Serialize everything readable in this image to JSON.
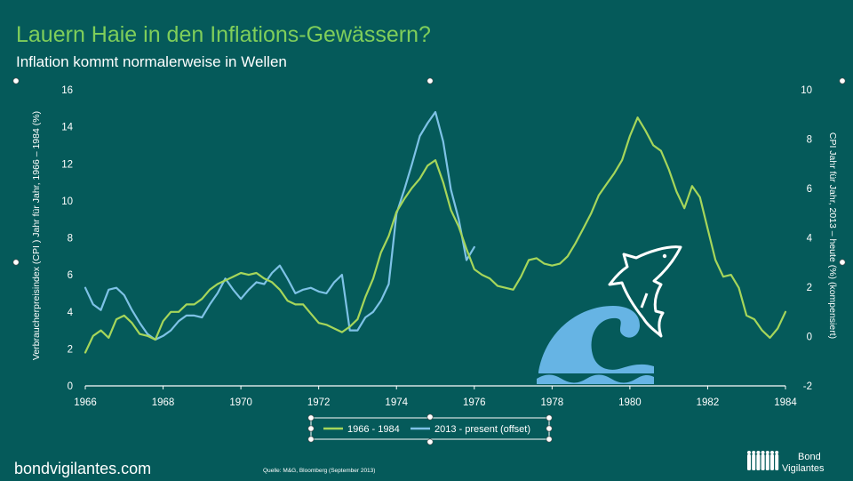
{
  "page": {
    "title": "Lauern Haie in den Inflations-Gewässern?",
    "subtitle": "Inflation kommt normalerweise in Wellen",
    "footer_site": "bondvigilantes.com",
    "source_note": "Quelle: M&G, Bloomberg (September 2013)",
    "brand_line1": "Bond",
    "brand_line2": "Vigilantes"
  },
  "colors": {
    "background": "#055a5a",
    "title": "#7fce5a",
    "series1": "#a6d65a",
    "series2": "#7ec2e6",
    "wave": "#66b4e4",
    "axis": "#ffffff"
  },
  "chart_data": {
    "type": "line",
    "ylabel_left": "Verbraucherpreisindex (CPI ) Jahr für Jahr, 1966 – 1984 (%)",
    "ylabel_right": "CPI Jahr für Jahr, 2013 – heute (%) (kompensiert)",
    "xlim": [
      1966,
      1984
    ],
    "ylim_left": [
      0,
      16
    ],
    "ylim_right": [
      -2,
      10
    ],
    "x_ticks": [
      "1966",
      "1968",
      "1970",
      "1972",
      "1974",
      "1976",
      "1978",
      "1980",
      "1982",
      "1984"
    ],
    "y_ticks_left": [
      "0",
      "2",
      "4",
      "6",
      "8",
      "10",
      "12",
      "14",
      "16"
    ],
    "y_ticks_right": [
      "-2",
      "0",
      "2",
      "4",
      "6",
      "8",
      "10"
    ],
    "legend": [
      "1966 - 1984",
      "2013 - present (offset)"
    ],
    "series": [
      {
        "name": "1966 - 1984",
        "axis": "left",
        "points": [
          [
            1966.0,
            1.8
          ],
          [
            1966.2,
            2.7
          ],
          [
            1966.4,
            3.0
          ],
          [
            1966.6,
            2.6
          ],
          [
            1966.8,
            3.6
          ],
          [
            1967.0,
            3.8
          ],
          [
            1967.2,
            3.4
          ],
          [
            1967.4,
            2.8
          ],
          [
            1967.6,
            2.7
          ],
          [
            1967.8,
            2.5
          ],
          [
            1968.0,
            3.5
          ],
          [
            1968.2,
            4.0
          ],
          [
            1968.4,
            4.0
          ],
          [
            1968.6,
            4.4
          ],
          [
            1968.8,
            4.4
          ],
          [
            1969.0,
            4.7
          ],
          [
            1969.2,
            5.2
          ],
          [
            1969.4,
            5.5
          ],
          [
            1969.6,
            5.7
          ],
          [
            1969.8,
            5.9
          ],
          [
            1970.0,
            6.1
          ],
          [
            1970.2,
            6.0
          ],
          [
            1970.4,
            6.1
          ],
          [
            1970.6,
            5.8
          ],
          [
            1970.8,
            5.6
          ],
          [
            1971.0,
            5.2
          ],
          [
            1971.2,
            4.6
          ],
          [
            1971.4,
            4.4
          ],
          [
            1971.6,
            4.4
          ],
          [
            1971.8,
            3.9
          ],
          [
            1972.0,
            3.4
          ],
          [
            1972.2,
            3.3
          ],
          [
            1972.4,
            3.1
          ],
          [
            1972.6,
            2.9
          ],
          [
            1972.8,
            3.2
          ],
          [
            1973.0,
            3.6
          ],
          [
            1973.2,
            4.8
          ],
          [
            1973.4,
            5.8
          ],
          [
            1973.6,
            7.2
          ],
          [
            1973.8,
            8.1
          ],
          [
            1974.0,
            9.4
          ],
          [
            1974.2,
            10.1
          ],
          [
            1974.4,
            10.7
          ],
          [
            1974.6,
            11.2
          ],
          [
            1974.8,
            11.9
          ],
          [
            1975.0,
            12.2
          ],
          [
            1975.2,
            11.0
          ],
          [
            1975.4,
            9.5
          ],
          [
            1975.6,
            8.6
          ],
          [
            1975.8,
            7.4
          ],
          [
            1976.0,
            6.3
          ],
          [
            1976.2,
            6.0
          ],
          [
            1976.4,
            5.8
          ],
          [
            1976.6,
            5.4
          ],
          [
            1976.8,
            5.3
          ],
          [
            1977.0,
            5.2
          ],
          [
            1977.2,
            5.9
          ],
          [
            1977.4,
            6.8
          ],
          [
            1977.6,
            6.9
          ],
          [
            1977.8,
            6.6
          ],
          [
            1978.0,
            6.5
          ],
          [
            1978.2,
            6.6
          ],
          [
            1978.4,
            7.0
          ],
          [
            1978.6,
            7.7
          ],
          [
            1978.8,
            8.5
          ],
          [
            1979.0,
            9.3
          ],
          [
            1979.2,
            10.3
          ],
          [
            1979.4,
            10.9
          ],
          [
            1979.6,
            11.5
          ],
          [
            1979.8,
            12.2
          ],
          [
            1980.0,
            13.5
          ],
          [
            1980.2,
            14.5
          ],
          [
            1980.4,
            13.8
          ],
          [
            1980.6,
            13.0
          ],
          [
            1980.8,
            12.7
          ],
          [
            1981.0,
            11.7
          ],
          [
            1981.2,
            10.5
          ],
          [
            1981.4,
            9.6
          ],
          [
            1981.6,
            10.8
          ],
          [
            1981.8,
            10.2
          ],
          [
            1982.0,
            8.5
          ],
          [
            1982.2,
            6.8
          ],
          [
            1982.4,
            5.9
          ],
          [
            1982.6,
            6.0
          ],
          [
            1982.8,
            5.3
          ],
          [
            1983.0,
            3.8
          ],
          [
            1983.2,
            3.6
          ],
          [
            1983.4,
            3.0
          ],
          [
            1983.6,
            2.6
          ],
          [
            1983.8,
            3.1
          ],
          [
            1984.0,
            4.0
          ]
        ]
      },
      {
        "name": "2013 - present (offset)",
        "axis": "left",
        "points": [
          [
            1966.0,
            5.3
          ],
          [
            1966.2,
            4.4
          ],
          [
            1966.4,
            4.1
          ],
          [
            1966.6,
            5.2
          ],
          [
            1966.8,
            5.3
          ],
          [
            1967.0,
            4.9
          ],
          [
            1967.2,
            4.1
          ],
          [
            1967.4,
            3.4
          ],
          [
            1967.6,
            2.8
          ],
          [
            1967.8,
            2.5
          ],
          [
            1968.0,
            2.7
          ],
          [
            1968.2,
            3.0
          ],
          [
            1968.4,
            3.5
          ],
          [
            1968.6,
            3.8
          ],
          [
            1968.8,
            3.8
          ],
          [
            1969.0,
            3.7
          ],
          [
            1969.2,
            4.4
          ],
          [
            1969.4,
            5.0
          ],
          [
            1969.6,
            5.8
          ],
          [
            1969.8,
            5.2
          ],
          [
            1970.0,
            4.7
          ],
          [
            1970.2,
            5.2
          ],
          [
            1970.4,
            5.6
          ],
          [
            1970.6,
            5.5
          ],
          [
            1970.8,
            6.1
          ],
          [
            1971.0,
            6.5
          ],
          [
            1971.2,
            5.8
          ],
          [
            1971.4,
            5.0
          ],
          [
            1971.6,
            5.2
          ],
          [
            1971.8,
            5.3
          ],
          [
            1972.0,
            5.1
          ],
          [
            1972.2,
            5.0
          ],
          [
            1972.4,
            5.6
          ],
          [
            1972.6,
            6.0
          ],
          [
            1972.8,
            3.0
          ],
          [
            1973.0,
            3.0
          ],
          [
            1973.2,
            3.7
          ],
          [
            1973.4,
            4.0
          ],
          [
            1973.6,
            4.6
          ],
          [
            1973.8,
            5.5
          ],
          [
            1974.0,
            9.3
          ],
          [
            1974.2,
            10.6
          ],
          [
            1974.4,
            12.0
          ],
          [
            1974.6,
            13.5
          ],
          [
            1974.8,
            14.2
          ],
          [
            1975.0,
            14.8
          ],
          [
            1975.2,
            13.2
          ],
          [
            1975.4,
            10.6
          ],
          [
            1975.6,
            9.0
          ],
          [
            1975.8,
            6.8
          ],
          [
            1976.0,
            7.5
          ]
        ]
      }
    ]
  }
}
